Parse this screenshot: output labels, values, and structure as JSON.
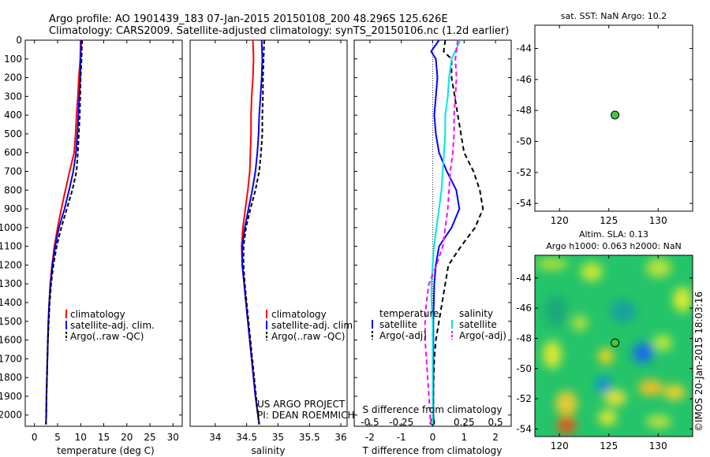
{
  "header": {
    "line1": "Argo profile: AO 1901439_183 07-Jan-2015 20150108_200 48.296S 125.626E",
    "line2": "Climatology: CARS2009. Satellite-adjusted climatology: synTS_20150106.nc (1.2d earlier)"
  },
  "colors": {
    "climatology": "#ff0000",
    "satellite_adj": "#0000ff",
    "argo": "#000000",
    "satellite_salinity": "#00e5e5",
    "argo_salinity": "#ff00ff",
    "float_marker": "#3ec93e"
  },
  "chart_data": [
    {
      "type": "line",
      "panel": "temperature",
      "xlabel": "temperature (deg C)",
      "ylabel": "",
      "xlim": [
        -2,
        32
      ],
      "ylim": [
        2060,
        0
      ],
      "xticks": [
        0,
        5,
        10,
        15,
        20,
        25,
        30
      ],
      "yticks": [
        0,
        100,
        200,
        300,
        400,
        500,
        600,
        700,
        800,
        900,
        1000,
        1100,
        1200,
        1300,
        1400,
        1500,
        1600,
        1700,
        1800,
        1900,
        2000
      ],
      "legend": [
        "climatology",
        "satellite-adj. clim.",
        "Argo(..raw -QC)"
      ],
      "legend_position": "lower-right",
      "series": [
        {
          "name": "climatology",
          "color": "#ff0000",
          "dash": "",
          "x": [
            10.0,
            9.9,
            9.6,
            9.4,
            9.1,
            8.9,
            8.6,
            7.6,
            6.7,
            5.8,
            5.0,
            4.3,
            3.8,
            3.4,
            3.2,
            3.0,
            2.9,
            2.8,
            2.7,
            2.6,
            2.55,
            2.5
          ],
          "y": [
            0,
            100,
            200,
            300,
            400,
            500,
            600,
            700,
            800,
            900,
            1000,
            1100,
            1200,
            1300,
            1400,
            1500,
            1600,
            1700,
            1800,
            1900,
            2000,
            2050
          ]
        },
        {
          "name": "satellite-adj. clim.",
          "color": "#0000ff",
          "dash": "",
          "x": [
            10.1,
            10.0,
            9.9,
            9.7,
            9.5,
            9.3,
            9.0,
            8.4,
            7.5,
            6.5,
            5.3,
            4.5,
            3.9,
            3.5,
            3.2,
            3.0,
            2.9,
            2.8,
            2.7,
            2.6,
            2.55,
            2.5
          ],
          "y": [
            0,
            100,
            200,
            300,
            400,
            500,
            600,
            700,
            800,
            900,
            1000,
            1100,
            1200,
            1300,
            1400,
            1500,
            1600,
            1700,
            1800,
            1900,
            2000,
            2050
          ]
        },
        {
          "name": "Argo(..raw -QC)",
          "color": "#000000",
          "dash": "5,3",
          "x": [
            10.3,
            10.2,
            10.0,
            9.9,
            9.8,
            9.6,
            9.4,
            9.1,
            8.2,
            7.0,
            5.8,
            4.8,
            4.1,
            3.6,
            3.3,
            3.1,
            2.9,
            2.8,
            2.7,
            2.6,
            2.55,
            2.5
          ],
          "y": [
            0,
            100,
            200,
            300,
            400,
            500,
            600,
            700,
            800,
            900,
            1000,
            1100,
            1200,
            1300,
            1400,
            1500,
            1600,
            1700,
            1800,
            1900,
            2000,
            2050
          ]
        }
      ]
    },
    {
      "type": "line",
      "panel": "salinity",
      "xlabel": "salinity",
      "ylabel": "",
      "xlim": [
        33.6,
        36.1
      ],
      "ylim": [
        2060,
        0
      ],
      "xticks": [
        34,
        34.5,
        35,
        35.5,
        36
      ],
      "legend": [
        "climatology",
        "satellite-adj. clim.",
        "Argo(..raw -QC)"
      ],
      "legend_position": "lower-right",
      "annotation": [
        "US ARGO PROJECT",
        "PI: DEAN ROEMMICH"
      ],
      "series": [
        {
          "name": "climatology",
          "color": "#ff0000",
          "dash": "",
          "x": [
            34.6,
            34.61,
            34.6,
            34.58,
            34.57,
            34.57,
            34.56,
            34.55,
            34.52,
            34.48,
            34.44,
            34.42,
            34.43,
            34.46,
            34.49,
            34.52,
            34.55,
            34.58,
            34.61,
            34.64,
            34.68,
            34.7
          ],
          "y": [
            0,
            100,
            200,
            300,
            400,
            500,
            600,
            700,
            800,
            900,
            1000,
            1100,
            1200,
            1300,
            1400,
            1500,
            1600,
            1700,
            1800,
            1900,
            2000,
            2050
          ]
        },
        {
          "name": "satellite-adj. clim.",
          "color": "#0000ff",
          "dash": "",
          "x": [
            34.74,
            34.75,
            34.74,
            34.72,
            34.7,
            34.69,
            34.67,
            34.64,
            34.59,
            34.53,
            34.47,
            34.43,
            34.43,
            34.46,
            34.49,
            34.52,
            34.55,
            34.58,
            34.61,
            34.64,
            34.68,
            34.7
          ],
          "y": [
            0,
            100,
            200,
            300,
            400,
            500,
            600,
            700,
            800,
            900,
            1000,
            1100,
            1200,
            1300,
            1400,
            1500,
            1600,
            1700,
            1800,
            1900,
            2000,
            2050
          ]
        },
        {
          "name": "Argo(..raw -QC)",
          "color": "#000000",
          "dash": "5,3",
          "x": [
            34.78,
            34.77,
            34.76,
            34.76,
            34.75,
            34.75,
            34.73,
            34.7,
            34.64,
            34.56,
            34.49,
            34.45,
            34.45,
            34.47,
            34.5,
            34.53,
            34.56,
            34.59,
            34.62,
            34.65,
            34.68,
            34.7
          ],
          "y": [
            0,
            100,
            200,
            300,
            400,
            500,
            600,
            700,
            800,
            900,
            1000,
            1100,
            1200,
            1300,
            1400,
            1500,
            1600,
            1700,
            1800,
            1900,
            2000,
            2050
          ]
        }
      ]
    },
    {
      "type": "line",
      "panel": "difference",
      "xlabel": "T difference from climatology",
      "x2label": "S difference from climatology",
      "ylabel": "",
      "xlim": [
        -2.5,
        2.5
      ],
      "ylim": [
        2060,
        0
      ],
      "xticks": [
        -2,
        -1,
        0,
        1,
        2
      ],
      "x2ticks": [
        "-0.5",
        "-0.25",
        "0",
        "0.25",
        "0.5"
      ],
      "legend_temperature_title": "temperature",
      "legend_salinity_title": "salinity",
      "legend_temperature": [
        "satellite",
        "Argo(-adj)"
      ],
      "legend_salinity": [
        "satellite",
        "Argo(-adj)"
      ],
      "series": [
        {
          "name": "satellite",
          "group": "temperature",
          "color": "#0000ff",
          "dash": "",
          "x": [
            0.2,
            -0.05,
            0.1,
            0.15,
            0.1,
            0.05,
            0.1,
            0.2,
            0.45,
            0.75,
            0.85,
            0.6,
            0.2,
            0.1,
            0.05,
            0.02,
            0.02,
            0.02,
            0.02,
            0.02,
            0.02,
            0.02
          ],
          "y": [
            0,
            60,
            100,
            200,
            300,
            400,
            500,
            600,
            700,
            800,
            900,
            1000,
            1100,
            1200,
            1300,
            1500,
            1600,
            1700,
            1800,
            1900,
            2000,
            2050
          ]
        },
        {
          "name": "Argo(-adj)",
          "group": "temperature",
          "color": "#000000",
          "dash": "6,4",
          "x": [
            0.4,
            0.35,
            0.6,
            0.6,
            0.7,
            0.8,
            0.9,
            1.0,
            1.3,
            1.5,
            1.6,
            1.35,
            0.9,
            0.5,
            0.4,
            0.2,
            0.1,
            0.05,
            0.03,
            0.02,
            0.02,
            0.02
          ],
          "y": [
            0,
            60,
            100,
            200,
            300,
            400,
            500,
            600,
            700,
            800,
            900,
            1000,
            1100,
            1200,
            1300,
            1500,
            1600,
            1700,
            1800,
            1900,
            2000,
            2050
          ]
        },
        {
          "name": "satellite",
          "group": "salinity",
          "color": "#00e5e5",
          "dash": "",
          "x": [
            0.22,
            0.15,
            0.13,
            0.12,
            0.1,
            0.1,
            0.09,
            0.08,
            0.07,
            0.05,
            0.03,
            0.01,
            0.0,
            -0.01,
            -0.01,
            0.0,
            0.0,
            0.0,
            0.0,
            0.0,
            0.0,
            0.0
          ],
          "y": [
            0,
            100,
            200,
            300,
            400,
            500,
            600,
            700,
            800,
            900,
            1000,
            1100,
            1200,
            1300,
            1400,
            1500,
            1600,
            1700,
            1800,
            1900,
            2000,
            2050
          ]
        },
        {
          "name": "Argo(-adj)",
          "group": "salinity",
          "color": "#ff00ff",
          "dash": "6,4",
          "x": [
            0.2,
            0.18,
            0.19,
            0.18,
            0.17,
            0.17,
            0.16,
            0.14,
            0.13,
            0.12,
            0.1,
            0.08,
            0.03,
            -0.03,
            -0.05,
            -0.06,
            -0.06,
            -0.05,
            -0.04,
            -0.03,
            -0.02,
            -0.02
          ],
          "y": [
            0,
            100,
            200,
            300,
            400,
            500,
            600,
            700,
            800,
            900,
            1000,
            1100,
            1200,
            1300,
            1400,
            1500,
            1600,
            1700,
            1800,
            1900,
            2000,
            2050
          ]
        }
      ]
    },
    {
      "type": "scatter",
      "panel": "sst-map",
      "title": "sat. SST: NaN Argo: 10.2",
      "xlim": [
        117.5,
        133.5
      ],
      "ylim": [
        -54.5,
        -42.5
      ],
      "xticks": [
        120,
        125,
        130
      ],
      "yticks": [
        -44,
        -46,
        -48,
        -50,
        -52,
        -54
      ],
      "points": [
        {
          "x": 125.626,
          "y": -48.296
        }
      ]
    },
    {
      "type": "heatmap",
      "panel": "sla-map",
      "title_line1": "Altim. SLA: 0.13",
      "title_line2": "Argo h1000: 0.063 h2000: NaN",
      "xlim": [
        117.5,
        133.5
      ],
      "ylim": [
        -54.5,
        -42.5
      ],
      "xticks": [
        120,
        125,
        130
      ],
      "yticks": [
        -44,
        -46,
        -48,
        -50,
        -52,
        -54
      ],
      "float_position": {
        "x": 125.626,
        "y": -48.296
      },
      "side_label": "©IMOS 20-Jan-2015 18:03:16"
    }
  ]
}
